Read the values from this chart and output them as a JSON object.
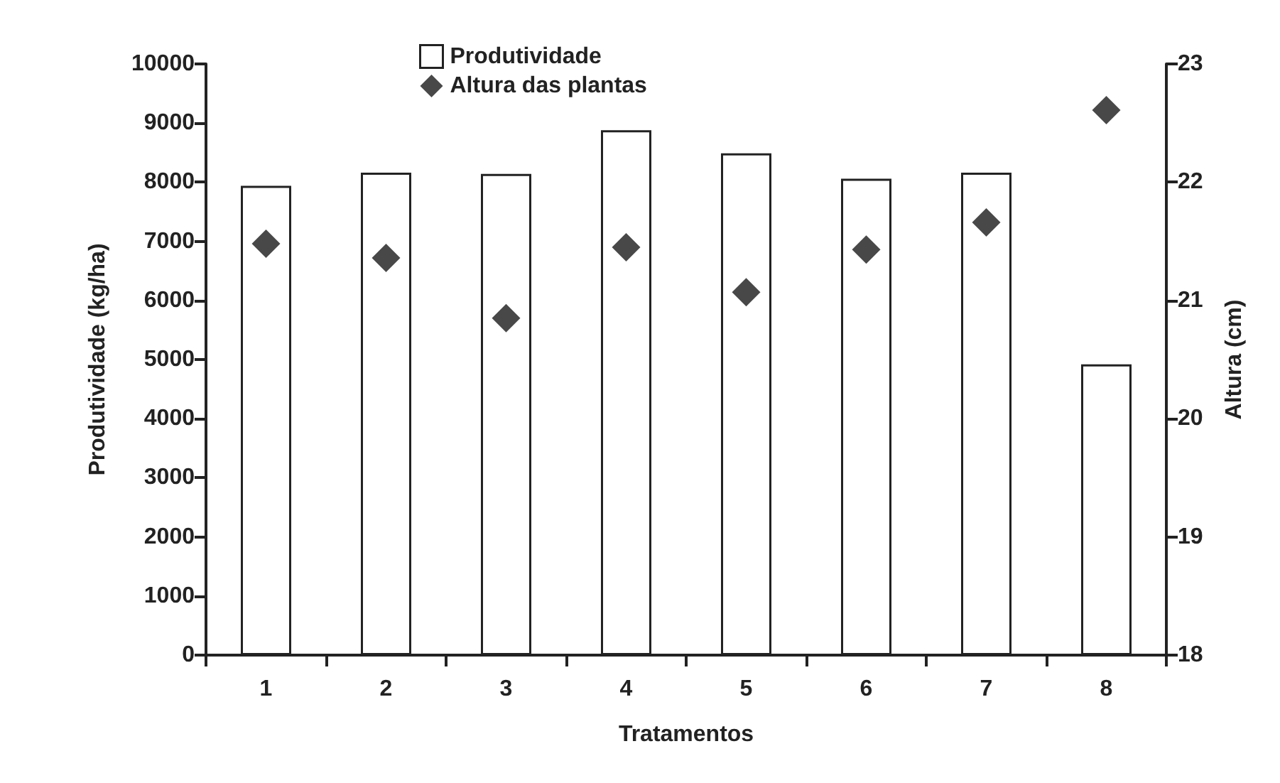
{
  "chart_data": {
    "type": "bar",
    "xlabel": "Tratamentos",
    "ylabel": "Produtividade (kg/ha)",
    "y2label": "Altura (cm)",
    "categories": [
      "1",
      "2",
      "3",
      "4",
      "5",
      "6",
      "7",
      "8"
    ],
    "series": [
      {
        "name": "Produtividade",
        "color": "#ffffff",
        "values": [
          7940,
          8160,
          8140,
          8880,
          8490,
          8060,
          8160,
          4920
        ]
      },
      {
        "name": "Altura das plantas",
        "type": "scatter",
        "axis": "y2",
        "color": "#1a1a1a",
        "values": [
          21.48,
          21.36,
          20.85,
          21.45,
          21.07,
          21.43,
          21.66,
          22.61
        ]
      }
    ],
    "ylim": [
      0,
      10000
    ],
    "yticks": [
      0,
      1000,
      2000,
      3000,
      4000,
      5000,
      6000,
      7000,
      8000,
      9000,
      10000
    ],
    "y2lim": [
      18,
      23
    ],
    "y2ticks": [
      18,
      19,
      20,
      21,
      22,
      23
    ],
    "marker": "diamond",
    "legend": "top",
    "grid": false
  }
}
